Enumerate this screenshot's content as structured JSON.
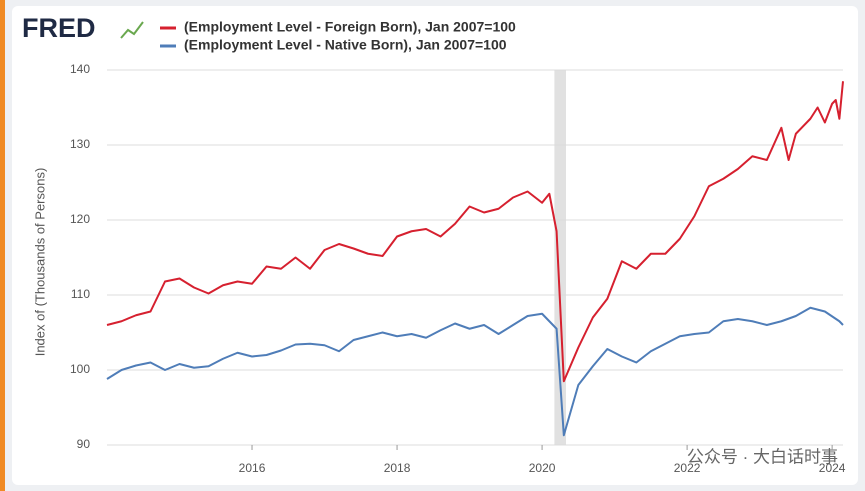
{
  "logo": "FRED",
  "watermark": "公众号 · 大白话时事",
  "chart_data": {
    "type": "line",
    "y_label": "Index of (Thousands of Persons)",
    "xlim": [
      2014.0,
      2024.15
    ],
    "xticks": [
      2016,
      2018,
      2020,
      2022,
      2024
    ],
    "ylim": [
      90,
      140
    ],
    "yticks": [
      90,
      100,
      110,
      120,
      130,
      140
    ],
    "grid": true,
    "recessions": [
      [
        2020.17,
        2020.33
      ]
    ],
    "series": [
      {
        "name": "(Employment Level - Foreign Born), Jan 2007=100",
        "color": "#d6202f",
        "x": [
          2014.0,
          2014.2,
          2014.4,
          2014.6,
          2014.8,
          2015.0,
          2015.2,
          2015.4,
          2015.6,
          2015.8,
          2016.0,
          2016.2,
          2016.4,
          2016.6,
          2016.8,
          2017.0,
          2017.2,
          2017.4,
          2017.6,
          2017.8,
          2018.0,
          2018.2,
          2018.4,
          2018.6,
          2018.8,
          2019.0,
          2019.2,
          2019.4,
          2019.6,
          2019.8,
          2020.0,
          2020.1,
          2020.2,
          2020.3,
          2020.5,
          2020.7,
          2020.9,
          2021.1,
          2021.3,
          2021.5,
          2021.7,
          2021.9,
          2022.1,
          2022.3,
          2022.5,
          2022.7,
          2022.9,
          2023.1,
          2023.3,
          2023.4,
          2023.5,
          2023.7,
          2023.8,
          2023.9,
          2024.0,
          2024.05,
          2024.1,
          2024.15
        ],
        "values": [
          106,
          106.5,
          107.3,
          107.8,
          111.8,
          112.2,
          111,
          110.2,
          111.3,
          111.8,
          111.5,
          113.8,
          113.5,
          115,
          113.5,
          116,
          116.8,
          116.2,
          115.5,
          115.2,
          117.8,
          118.5,
          118.8,
          117.8,
          119.5,
          121.8,
          121,
          121.5,
          123,
          123.8,
          122.3,
          123.5,
          118.5,
          98.5,
          103,
          107,
          109.5,
          114.5,
          113.5,
          115.5,
          115.5,
          117.5,
          120.5,
          124.5,
          125.5,
          126.8,
          128.5,
          128,
          132.3,
          128,
          131.5,
          133.5,
          135,
          133,
          135.5,
          136,
          133.5,
          138.5
        ]
      },
      {
        "name": "(Employment Level - Native Born), Jan 2007=100",
        "color": "#4f7db8",
        "x": [
          2014.0,
          2014.2,
          2014.4,
          2014.6,
          2014.8,
          2015.0,
          2015.2,
          2015.4,
          2015.6,
          2015.8,
          2016.0,
          2016.2,
          2016.4,
          2016.6,
          2016.8,
          2017.0,
          2017.2,
          2017.4,
          2017.6,
          2017.8,
          2018.0,
          2018.2,
          2018.4,
          2018.6,
          2018.8,
          2019.0,
          2019.2,
          2019.4,
          2019.6,
          2019.8,
          2020.0,
          2020.1,
          2020.2,
          2020.3,
          2020.5,
          2020.7,
          2020.9,
          2021.1,
          2021.3,
          2021.5,
          2021.7,
          2021.9,
          2022.1,
          2022.3,
          2022.5,
          2022.7,
          2022.9,
          2023.1,
          2023.3,
          2023.5,
          2023.7,
          2023.9,
          2024.1,
          2024.15
        ],
        "values": [
          98.8,
          100,
          100.6,
          101,
          100,
          100.8,
          100.3,
          100.5,
          101.5,
          102.3,
          101.8,
          102,
          102.6,
          103.4,
          103.5,
          103.3,
          102.5,
          104,
          104.5,
          105,
          104.5,
          104.8,
          104.3,
          105.3,
          106.2,
          105.5,
          106,
          104.8,
          106,
          107.2,
          107.5,
          106.5,
          105.5,
          91.3,
          98,
          100.5,
          102.8,
          101.8,
          101,
          102.5,
          103.5,
          104.5,
          104.8,
          105,
          106.5,
          106.8,
          106.5,
          106,
          106.5,
          107.2,
          108.3,
          107.8,
          106.5,
          106
        ]
      }
    ]
  }
}
